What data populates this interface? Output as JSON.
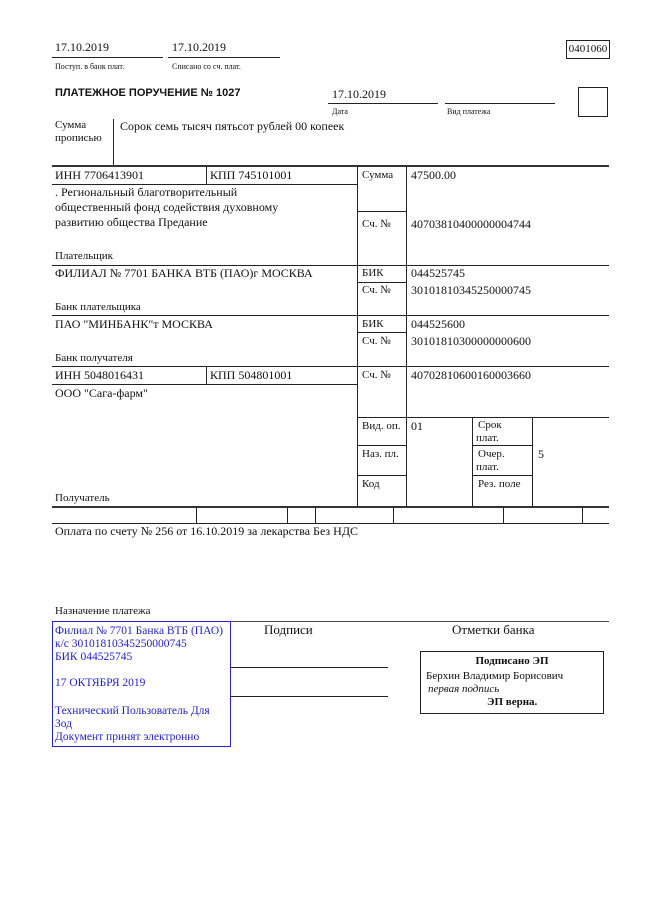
{
  "header": {
    "received_date": "17.10.2019",
    "received_label": "Поступ. в банк плат.",
    "debited_date": "17.10.2019",
    "debited_label": "Списано со сч. плат.",
    "form_code": "0401060",
    "title": "ПЛАТЕЖНОЕ ПОРУЧЕНИЕ № 1027",
    "date": "17.10.2019",
    "date_label": "Дата",
    "payment_type_label": "Вид платежа",
    "payment_type": ""
  },
  "amount_words": {
    "label_1": "Сумма",
    "label_2": "прописью",
    "value": "Сорок семь тысяч пятьсот рублей 00 копеек"
  },
  "payer": {
    "inn": "ИНН 7706413901",
    "kpp": "КПП 745101001",
    "name_lines": [
      ". Региональный благотворительный",
      "общественный фонд содействия духовному",
      "развитию общества Предание"
    ],
    "label": "Плательщик",
    "sum_label": "Сумма",
    "sum": "47500.00",
    "account_label": "Сч. №",
    "account": "40703810400000004744"
  },
  "payer_bank": {
    "name": "ФИЛИАЛ № 7701 БАНКА ВТБ (ПАО)г МОСКВА",
    "label": "Банк плательщика",
    "bik_label": "БИК",
    "bik": "044525745",
    "account_label": "Сч. №",
    "account": "30101810345250000745"
  },
  "payee_bank": {
    "name": "ПАО \"МИНБАНК\"т МОСКВА",
    "label": "Банк получателя",
    "bik_label": "БИК",
    "bik": "044525600",
    "account_label": "Сч. №",
    "account": "30101810300000000600"
  },
  "payee": {
    "inn": "ИНН 5048016431",
    "kpp": "КПП 504801001",
    "name": "ООО \"Сага-фарм\"",
    "label": "Получатель",
    "account_label": "Сч. №",
    "account": "40702810600160003660"
  },
  "codes": {
    "op_type_label": "Вид. оп.",
    "op_type": "01",
    "purpose_label": "Наз. пл.",
    "code_label": "Код",
    "term_label_1": "Срок",
    "term_label_2": "плат.",
    "order_label_1": "Очер.",
    "order_label_2": "плат.",
    "order": "5",
    "reserved_label": "Рез. поле"
  },
  "purpose": {
    "text": "Оплата по счету № 256 от 16.10.2019 за лекарства Без НДС",
    "label": "Назначение платежа"
  },
  "stamp": {
    "lines": [
      "Филиал № 7701 Банка ВТБ (ПАО)",
      "к/с 30101810345250000745",
      "БИК 044525745",
      "",
      "17 ОКТЯБРЯ 2019",
      "",
      "Технический Пользователь Для",
      "Зод",
      "Документ принят электронно"
    ],
    "color": "#2323c8"
  },
  "signatures": {
    "label": "Подписи"
  },
  "bank_marks": {
    "label": "Отметки банка",
    "signed": "Подписано ЭП",
    "signer": "Берхин Владимир Борисович",
    "signature_type": "первая подпись",
    "verified": "ЭП верна."
  }
}
